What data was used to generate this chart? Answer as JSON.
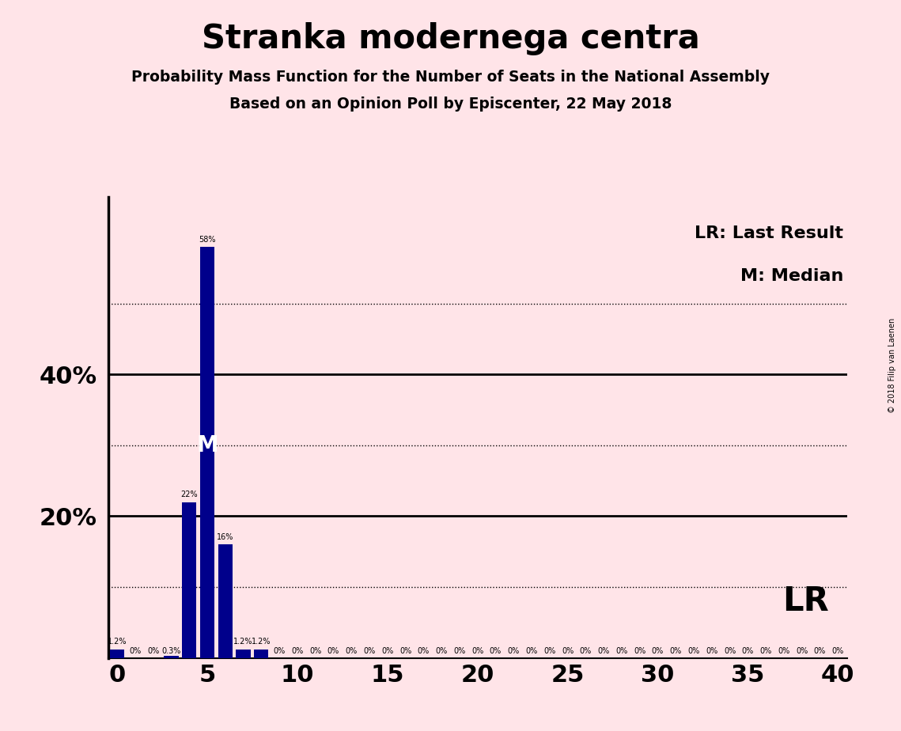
{
  "title": "Stranka modernega centra",
  "subtitle1": "Probability Mass Function for the Number of Seats in the National Assembly",
  "subtitle2": "Based on an Opinion Poll by Episcenter, 22 May 2018",
  "copyright": "© 2018 Filip van Laenen",
  "seats": [
    0,
    1,
    2,
    3,
    4,
    5,
    6,
    7,
    8,
    9,
    10,
    11,
    12,
    13,
    14,
    15,
    16,
    17,
    18,
    19,
    20,
    21,
    22,
    23,
    24,
    25,
    26,
    27,
    28,
    29,
    30,
    31,
    32,
    33,
    34,
    35,
    36,
    37,
    38,
    39,
    40
  ],
  "probabilities": [
    1.2,
    0,
    0,
    0.3,
    22,
    58,
    16,
    1.2,
    1.2,
    0,
    0,
    0,
    0,
    0,
    0,
    0,
    0,
    0,
    0,
    0,
    0,
    0,
    0,
    0,
    0,
    0,
    0,
    0,
    0,
    0,
    0,
    0,
    0,
    0,
    0,
    0,
    0,
    0,
    0,
    0,
    0
  ],
  "bar_color": "#00008B",
  "background_color": "#FFE4E8",
  "median_seat": 5,
  "solid_gridlines": [
    20,
    40
  ],
  "dotted_gridlines": [
    10,
    30,
    50
  ],
  "xlim": [
    -0.5,
    40.5
  ],
  "ylim": [
    0,
    65
  ],
  "xticks": [
    0,
    5,
    10,
    15,
    20,
    25,
    30,
    35,
    40
  ],
  "ytick_positions": [
    20,
    40
  ],
  "ytick_labels": [
    "20%",
    "40%"
  ],
  "bar_label_seats": [
    0,
    1,
    2,
    3,
    4,
    5,
    6,
    7,
    8
  ],
  "bar_label_texts": [
    "1.2%",
    "0%",
    "0%",
    "0.3%",
    "22%",
    "58%",
    "16%",
    "1.2%",
    "1.2%"
  ],
  "zero_label_from": 9
}
